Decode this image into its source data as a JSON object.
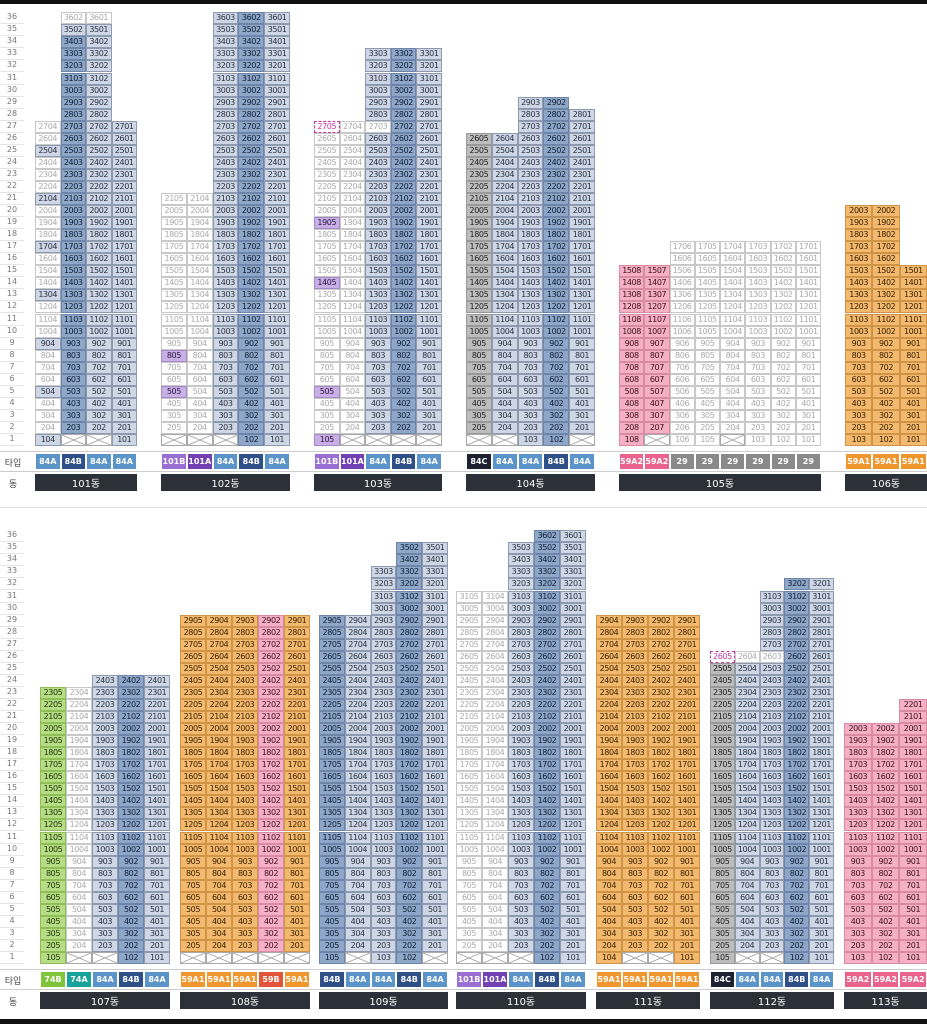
{
  "labels": {
    "type_label": "타입",
    "dong_label": "동"
  },
  "floor_numbers": [
    36,
    35,
    34,
    33,
    32,
    31,
    30,
    29,
    28,
    27,
    26,
    25,
    24,
    23,
    22,
    21,
    20,
    19,
    18,
    17,
    16,
    15,
    14,
    13,
    12,
    11,
    10,
    9,
    8,
    7,
    6,
    5,
    4,
    3,
    2,
    1
  ],
  "color_legend": {
    "c0": "#ffffff",
    "c1": "#cfd7e6",
    "c2": "#8ea6c8",
    "c3": "#f3b96e",
    "c4": "#f6b0c6",
    "c5": "#c8b0e6",
    "c6": "#b6dc86",
    "c7": "#8fd2c8",
    "c8": "#bdbdbd"
  },
  "type_colors": {
    "84A": "#5b94c8",
    "84B": "#2f4f87",
    "84C": "#1d2130",
    "101A": "#7141b3",
    "101B": "#9a6fd3",
    "59A1": "#f0962e",
    "59A2": "#e9638d",
    "59B": "#e2553a",
    "29": "#8a8a8a",
    "74A": "#17a39a",
    "74B": "#7fc43a"
  },
  "buildings": [
    {
      "name": "101동",
      "row": 0,
      "cols": 4,
      "types": [
        "84A",
        "84B",
        "84A",
        "84A"
      ],
      "floors": {
        "36": [
          [
            "",
            0
          ],
          [
            "3602",
            0
          ],
          [
            "3601",
            0
          ],
          [
            "",
            0
          ]
        ],
        "35": [
          [
            "",
            0
          ],
          [
            "3502",
            1
          ],
          [
            "3501",
            1
          ],
          [
            "",
            0
          ]
        ],
        "27": [
          [
            "2704",
            0
          ],
          [
            "2703",
            2
          ],
          [
            "2702",
            1
          ],
          [
            "2701",
            1
          ]
        ],
        "1": [
          [
            "104",
            1
          ],
          [
            "x",
            0
          ],
          [
            "x",
            0
          ],
          [
            "101",
            1
          ]
        ]
      },
      "default_top": 27,
      "cols_top": [
        27,
        36,
        36,
        27
      ],
      "pattern": [
        0,
        2,
        1,
        1
      ],
      "pattern_alt": {
        "5": [
          1,
          2,
          1,
          1
        ],
        "9": [
          1,
          2,
          1,
          1
        ],
        "13": [
          1,
          2,
          1,
          1
        ],
        "17": [
          1,
          2,
          1,
          1
        ],
        "21": [
          1,
          2,
          1,
          1
        ],
        "25": [
          1,
          2,
          1,
          1
        ]
      }
    },
    {
      "name": "102동",
      "row": 0,
      "cols": 5,
      "types": [
        "101B",
        "101A",
        "84A",
        "84B",
        "84A"
      ],
      "cols_top": [
        21,
        21,
        36,
        36,
        36
      ],
      "pattern": [
        0,
        0,
        1,
        2,
        1
      ],
      "pattern_alt": {
        "5": [
          5,
          0,
          1,
          2,
          1
        ],
        "8": [
          5,
          0,
          1,
          2,
          1
        ]
      },
      "floors": {
        "1": [
          [
            "x",
            0
          ],
          [
            "x",
            0
          ],
          [
            "x",
            0
          ],
          [
            "102",
            2
          ],
          [
            "101",
            1
          ]
        ]
      }
    },
    {
      "name": "103동",
      "row": 0,
      "cols": 5,
      "types": [
        "101B",
        "101A",
        "84A",
        "84B",
        "84A"
      ],
      "cols_top": [
        27,
        27,
        33,
        33,
        33
      ],
      "pattern": [
        0,
        0,
        1,
        2,
        1
      ],
      "pattern_alt": {
        "19": [
          5,
          0,
          1,
          2,
          1
        ],
        "14": [
          5,
          0,
          1,
          2,
          1
        ],
        "5": [
          5,
          0,
          1,
          2,
          1
        ],
        "1": [
          5,
          0,
          1,
          2,
          1
        ]
      },
      "floors": {
        "27": [
          [
            "2705",
            9
          ],
          [
            "",
            0
          ],
          [
            "2703",
            0
          ],
          [
            "2702",
            2
          ],
          [
            "2701",
            1
          ]
        ],
        "1": [
          [
            "105",
            5
          ],
          [
            "x",
            0
          ],
          [
            "x",
            0
          ],
          [
            "x",
            0
          ],
          [
            "x",
            0
          ]
        ]
      }
    },
    {
      "name": "104동",
      "row": 0,
      "cols": 5,
      "types": [
        "84C",
        "84A",
        "84A",
        "84B",
        "84A"
      ],
      "cols_top": [
        26,
        26,
        29,
        29,
        28
      ],
      "pattern": [
        8,
        1,
        1,
        2,
        1
      ],
      "floors": {
        "1": [
          [
            "x",
            0
          ],
          [
            "x",
            0
          ],
          [
            "103",
            1
          ],
          [
            "102",
            2
          ],
          [
            "x",
            0
          ]
        ]
      }
    },
    {
      "name": "105동",
      "row": 0,
      "cols": 8,
      "types": [
        "59A2",
        "59A2",
        "29",
        "29",
        "29",
        "29",
        "29",
        "29"
      ],
      "cols_top": [
        15,
        15,
        17,
        17,
        17,
        17,
        17,
        17
      ],
      "pattern": [
        4,
        4,
        0,
        0,
        0,
        0,
        0,
        0
      ],
      "floors": {
        "1": [
          [
            "108",
            4
          ],
          [
            "x",
            0
          ],
          [
            "106",
            0
          ],
          [
            "105",
            0
          ],
          [
            "x",
            0
          ],
          [
            "103",
            0
          ],
          [
            "102",
            0
          ],
          [
            "101",
            0
          ]
        ]
      }
    },
    {
      "name": "106동",
      "row": 0,
      "cols": 3,
      "types": [
        "59A1",
        "59A1",
        "59A1"
      ],
      "cols_top": [
        20,
        20,
        15
      ],
      "pattern": [
        3,
        3,
        3
      ],
      "floors": {}
    },
    {
      "name": "107동",
      "row": 1,
      "cols": 5,
      "types": [
        "74B",
        "74A",
        "84A",
        "84B",
        "84A"
      ],
      "cols_top": [
        23,
        23,
        24,
        24,
        24
      ],
      "pattern": [
        6,
        0,
        1,
        2,
        1
      ],
      "floors": {
        "1": [
          [
            "105",
            6
          ],
          [
            "x",
            0
          ],
          [
            "x",
            0
          ],
          [
            "102",
            2
          ],
          [
            "101",
            1
          ]
        ]
      }
    },
    {
      "name": "108동",
      "row": 1,
      "cols": 5,
      "types": [
        "59A1",
        "59A1",
        "59A1",
        "59B",
        "59A1"
      ],
      "cols_top": [
        29,
        29,
        29,
        29,
        29
      ],
      "pattern": [
        3,
        3,
        3,
        4,
        3
      ],
      "floors": {
        "1": [
          [
            "x",
            0
          ],
          [
            "x",
            0
          ],
          [
            "x",
            0
          ],
          [
            "x",
            0
          ],
          [
            "x",
            0
          ]
        ]
      }
    },
    {
      "name": "109동",
      "row": 1,
      "cols": 5,
      "types": [
        "84B",
        "84A",
        "84A",
        "84B",
        "84A"
      ],
      "cols_top": [
        29,
        29,
        33,
        35,
        35
      ],
      "pattern": [
        2,
        1,
        1,
        2,
        1
      ],
      "floors": {
        "1": [
          [
            "105",
            2
          ],
          [
            "x",
            0
          ],
          [
            "103",
            1
          ],
          [
            "102",
            2
          ],
          [
            "x",
            0
          ]
        ]
      }
    },
    {
      "name": "110동",
      "row": 1,
      "cols": 5,
      "types": [
        "101B",
        "101A",
        "84A",
        "84B",
        "84A"
      ],
      "cols_top": [
        31,
        31,
        35,
        36,
        36
      ],
      "pattern": [
        0,
        0,
        1,
        2,
        1
      ],
      "floors": {
        "1": [
          [
            "x",
            0
          ],
          [
            "x",
            0
          ],
          [
            "x",
            0
          ],
          [
            "102",
            2
          ],
          [
            "101",
            1
          ]
        ]
      }
    },
    {
      "name": "111동",
      "row": 1,
      "cols": 4,
      "types": [
        "59A1",
        "59A1",
        "59A1",
        "59A1"
      ],
      "cols_top": [
        29,
        29,
        29,
        29
      ],
      "pattern": [
        3,
        3,
        3,
        3
      ],
      "floors": {
        "1": [
          [
            "104",
            3
          ],
          [
            "x",
            0
          ],
          [
            "x",
            0
          ],
          [
            "101",
            3
          ]
        ]
      }
    },
    {
      "name": "112동",
      "row": 1,
      "cols": 5,
      "types": [
        "84C",
        "84A",
        "84A",
        "84B",
        "84A"
      ],
      "cols_top": [
        26,
        26,
        31,
        32,
        32
      ],
      "pattern": [
        8,
        1,
        1,
        2,
        1
      ],
      "floors": {
        "26": [
          [
            "2605",
            9
          ],
          [
            "",
            0
          ],
          [
            "",
            0
          ],
          [
            "2602",
            2
          ],
          [
            "2601",
            1
          ]
        ],
        "1": [
          [
            "105",
            8
          ],
          [
            "x",
            0
          ],
          [
            "x",
            0
          ],
          [
            "102",
            2
          ],
          [
            "101",
            1
          ]
        ]
      }
    },
    {
      "name": "113동",
      "row": 1,
      "cols": 3,
      "types": [
        "59A2",
        "59A2",
        "59A2"
      ],
      "cols_top": [
        20,
        20,
        22
      ],
      "pattern": [
        4,
        4,
        4
      ],
      "floors": {}
    }
  ]
}
